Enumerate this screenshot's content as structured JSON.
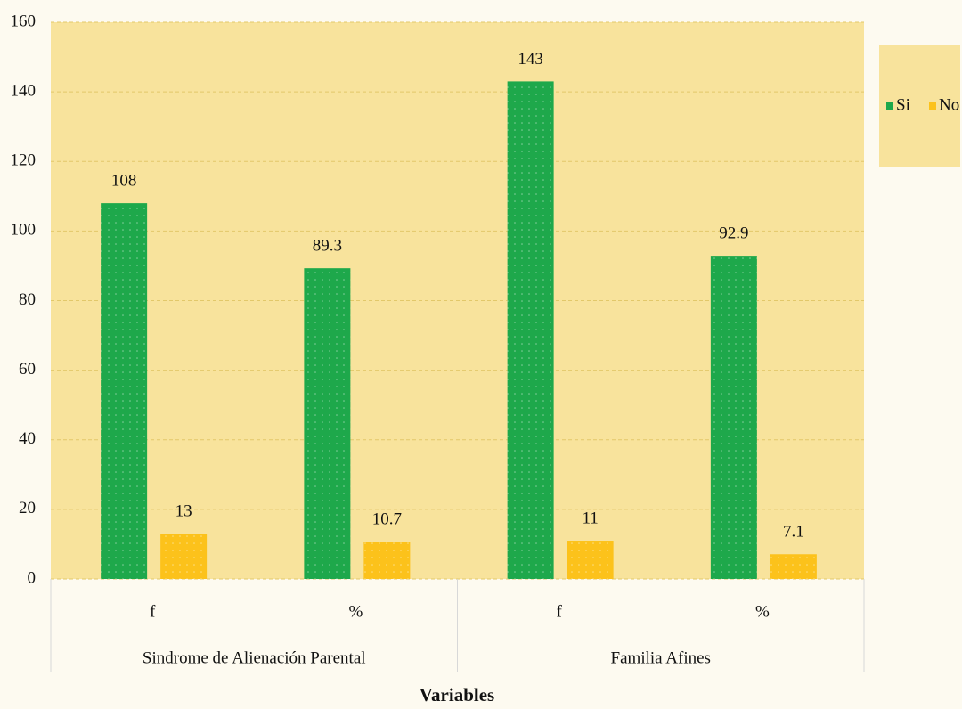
{
  "chart_data": {
    "type": "bar",
    "groups": [
      {
        "label": "Sindrome de Alienación Parental",
        "categories": [
          "f",
          "%"
        ]
      },
      {
        "label": "Familia Afines",
        "categories": [
          "f",
          "%"
        ]
      }
    ],
    "series": [
      {
        "name": "Si",
        "color": "#1ea84b",
        "values": [
          108,
          89.3,
          143,
          92.9
        ]
      },
      {
        "name": "No",
        "color": "#fcc21b",
        "values": [
          13,
          10.7,
          11,
          7.1
        ]
      }
    ],
    "xlabel": "Variables",
    "ylim": [
      0,
      160
    ],
    "yticks": [
      0,
      20,
      40,
      60,
      80,
      100,
      120,
      140,
      160
    ],
    "grid": true,
    "legend": "right"
  }
}
